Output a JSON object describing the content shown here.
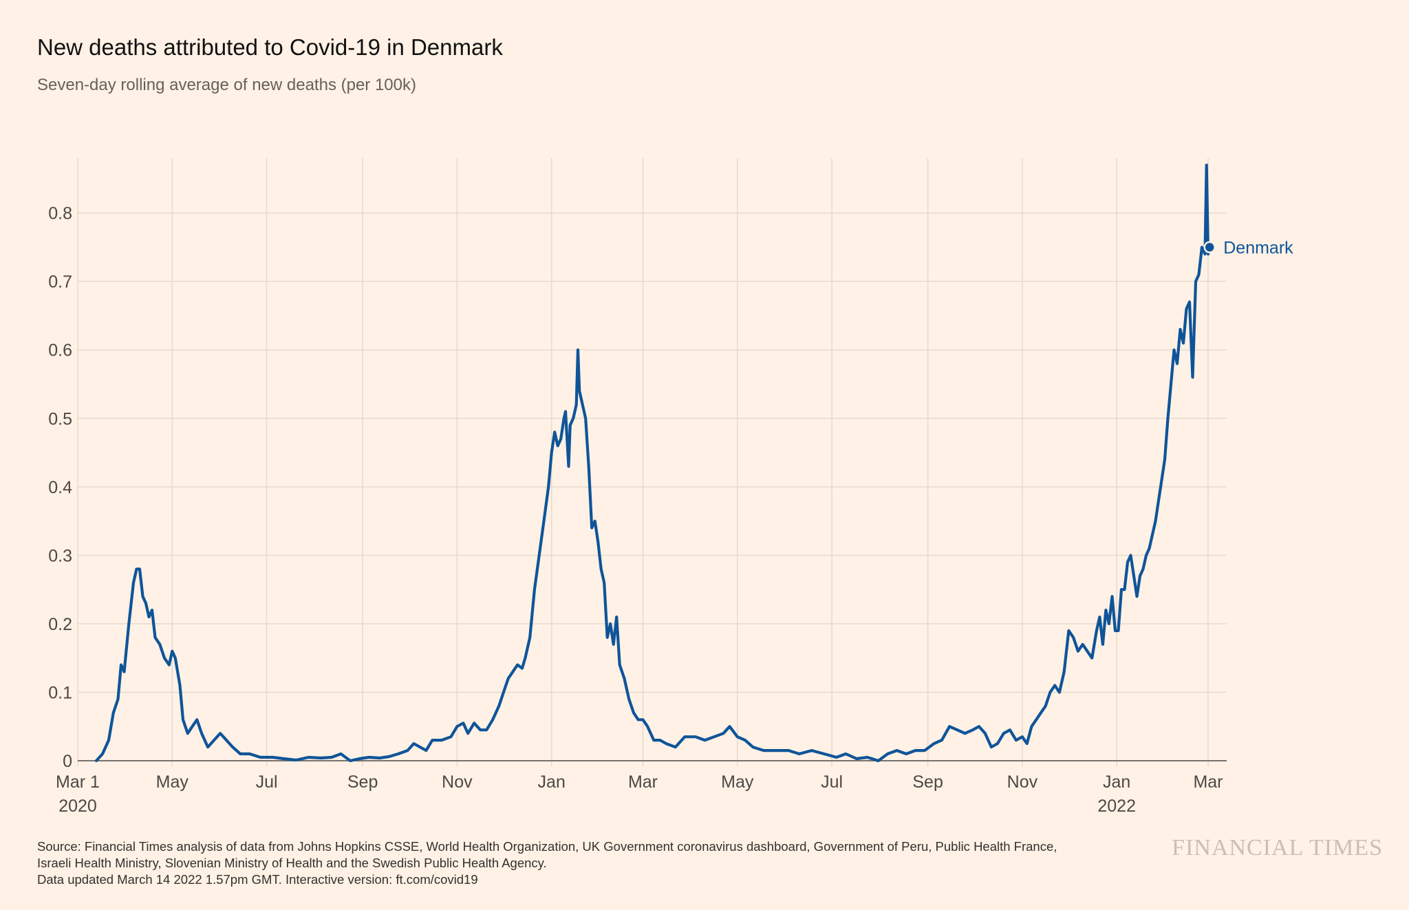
{
  "header": {
    "title": "New deaths attributed to Covid-19 in Denmark",
    "subtitle": "Seven-day rolling average of new deaths (per 100k)"
  },
  "footer": {
    "source_line1": "Source: Financial Times analysis of data from Johns Hopkins CSSE, World Health Organization, UK Government coronavirus dashboard, Government of Peru, Public Health France,",
    "source_line2": "Israeli Health Ministry, Slovenian Ministry of Health and the Swedish Public Health Agency.",
    "updated": "Data updated March 14 2022 1.57pm GMT. Interactive version: ft.com/covid19",
    "brand": "FINANCIAL TIMES"
  },
  "colors": {
    "background": "#fff1e5",
    "line": "#0f5499",
    "grid": "#e6d9ce",
    "text": "#4d4845"
  },
  "chart_data": {
    "type": "line",
    "x_axis": {
      "start": "2020-03-01",
      "end": "2022-03-13",
      "ticks": [
        {
          "date": "2020-03-01",
          "label": "Mar 1",
          "sublabel": "2020"
        },
        {
          "date": "2020-05-01",
          "label": "May",
          "sublabel": ""
        },
        {
          "date": "2020-07-01",
          "label": "Jul",
          "sublabel": ""
        },
        {
          "date": "2020-09-01",
          "label": "Sep",
          "sublabel": ""
        },
        {
          "date": "2020-11-01",
          "label": "Nov",
          "sublabel": ""
        },
        {
          "date": "2021-01-01",
          "label": "Jan",
          "sublabel": ""
        },
        {
          "date": "2021-03-01",
          "label": "Mar",
          "sublabel": ""
        },
        {
          "date": "2021-05-01",
          "label": "May",
          "sublabel": ""
        },
        {
          "date": "2021-07-01",
          "label": "Jul",
          "sublabel": ""
        },
        {
          "date": "2021-09-01",
          "label": "Sep",
          "sublabel": ""
        },
        {
          "date": "2021-11-01",
          "label": "Nov",
          "sublabel": ""
        },
        {
          "date": "2022-01-01",
          "label": "Jan",
          "sublabel": "2022"
        },
        {
          "date": "2022-03-01",
          "label": "Mar",
          "sublabel": ""
        }
      ]
    },
    "y_axis": {
      "ylim": [
        0,
        0.88
      ],
      "ticks": [
        0,
        0.1,
        0.2,
        0.3,
        0.4,
        0.5,
        0.6,
        0.7,
        0.8
      ],
      "tick_labels": [
        "0",
        "0.1",
        "0.2",
        "0.3",
        "0.4",
        "0.5",
        "0.6",
        "0.7",
        "0.8"
      ]
    },
    "grid": true,
    "series": [
      {
        "name": "Denmark",
        "color": "#0f5499",
        "points": [
          [
            "2020-03-13",
            0.0
          ],
          [
            "2020-03-17",
            0.01
          ],
          [
            "2020-03-21",
            0.03
          ],
          [
            "2020-03-24",
            0.07
          ],
          [
            "2020-03-27",
            0.09
          ],
          [
            "2020-03-29",
            0.14
          ],
          [
            "2020-03-31",
            0.13
          ],
          [
            "2020-04-03",
            0.2
          ],
          [
            "2020-04-06",
            0.26
          ],
          [
            "2020-04-08",
            0.28
          ],
          [
            "2020-04-10",
            0.28
          ],
          [
            "2020-04-12",
            0.24
          ],
          [
            "2020-04-14",
            0.23
          ],
          [
            "2020-04-16",
            0.21
          ],
          [
            "2020-04-18",
            0.22
          ],
          [
            "2020-04-20",
            0.18
          ],
          [
            "2020-04-23",
            0.17
          ],
          [
            "2020-04-26",
            0.15
          ],
          [
            "2020-04-29",
            0.14
          ],
          [
            "2020-05-01",
            0.16
          ],
          [
            "2020-05-03",
            0.15
          ],
          [
            "2020-05-06",
            0.11
          ],
          [
            "2020-05-08",
            0.06
          ],
          [
            "2020-05-11",
            0.04
          ],
          [
            "2020-05-14",
            0.05
          ],
          [
            "2020-05-17",
            0.06
          ],
          [
            "2020-05-20",
            0.04
          ],
          [
            "2020-05-24",
            0.02
          ],
          [
            "2020-05-28",
            0.03
          ],
          [
            "2020-06-01",
            0.04
          ],
          [
            "2020-06-05",
            0.03
          ],
          [
            "2020-06-09",
            0.02
          ],
          [
            "2020-06-14",
            0.01
          ],
          [
            "2020-06-20",
            0.01
          ],
          [
            "2020-06-27",
            0.005
          ],
          [
            "2020-07-05",
            0.005
          ],
          [
            "2020-07-12",
            0.003
          ],
          [
            "2020-07-20",
            0.001
          ],
          [
            "2020-07-28",
            0.005
          ],
          [
            "2020-08-05",
            0.004
          ],
          [
            "2020-08-12",
            0.005
          ],
          [
            "2020-08-18",
            0.01
          ],
          [
            "2020-08-24",
            0.0
          ],
          [
            "2020-08-30",
            0.003
          ],
          [
            "2020-09-05",
            0.005
          ],
          [
            "2020-09-12",
            0.004
          ],
          [
            "2020-09-18",
            0.006
          ],
          [
            "2020-09-24",
            0.01
          ],
          [
            "2020-09-30",
            0.015
          ],
          [
            "2020-10-04",
            0.025
          ],
          [
            "2020-10-08",
            0.02
          ],
          [
            "2020-10-12",
            0.015
          ],
          [
            "2020-10-16",
            0.03
          ],
          [
            "2020-10-22",
            0.03
          ],
          [
            "2020-10-28",
            0.035
          ],
          [
            "2020-11-01",
            0.05
          ],
          [
            "2020-11-05",
            0.055
          ],
          [
            "2020-11-08",
            0.04
          ],
          [
            "2020-11-12",
            0.055
          ],
          [
            "2020-11-16",
            0.045
          ],
          [
            "2020-11-20",
            0.045
          ],
          [
            "2020-11-24",
            0.06
          ],
          [
            "2020-11-28",
            0.08
          ],
          [
            "2020-12-01",
            0.1
          ],
          [
            "2020-12-04",
            0.12
          ],
          [
            "2020-12-07",
            0.13
          ],
          [
            "2020-12-10",
            0.14
          ],
          [
            "2020-12-13",
            0.135
          ],
          [
            "2020-12-15",
            0.15
          ],
          [
            "2020-12-18",
            0.18
          ],
          [
            "2020-12-21",
            0.25
          ],
          [
            "2020-12-24",
            0.3
          ],
          [
            "2020-12-27",
            0.35
          ],
          [
            "2020-12-30",
            0.4
          ],
          [
            "2021-01-01",
            0.45
          ],
          [
            "2021-01-03",
            0.48
          ],
          [
            "2021-01-05",
            0.46
          ],
          [
            "2021-01-07",
            0.47
          ],
          [
            "2021-01-09",
            0.5
          ],
          [
            "2021-01-10",
            0.51
          ],
          [
            "2021-01-12",
            0.43
          ],
          [
            "2021-01-13",
            0.49
          ],
          [
            "2021-01-15",
            0.5
          ],
          [
            "2021-01-17",
            0.52
          ],
          [
            "2021-01-18",
            0.6
          ],
          [
            "2021-01-19",
            0.54
          ],
          [
            "2021-01-21",
            0.52
          ],
          [
            "2021-01-23",
            0.5
          ],
          [
            "2021-01-25",
            0.43
          ],
          [
            "2021-01-27",
            0.34
          ],
          [
            "2021-01-29",
            0.35
          ],
          [
            "2021-01-31",
            0.32
          ],
          [
            "2021-02-02",
            0.28
          ],
          [
            "2021-02-04",
            0.26
          ],
          [
            "2021-02-06",
            0.18
          ],
          [
            "2021-02-08",
            0.2
          ],
          [
            "2021-02-10",
            0.17
          ],
          [
            "2021-02-12",
            0.21
          ],
          [
            "2021-02-14",
            0.14
          ],
          [
            "2021-02-17",
            0.12
          ],
          [
            "2021-02-20",
            0.09
          ],
          [
            "2021-02-23",
            0.07
          ],
          [
            "2021-02-26",
            0.06
          ],
          [
            "2021-03-01",
            0.06
          ],
          [
            "2021-03-04",
            0.05
          ],
          [
            "2021-03-08",
            0.03
          ],
          [
            "2021-03-12",
            0.03
          ],
          [
            "2021-03-16",
            0.025
          ],
          [
            "2021-03-22",
            0.02
          ],
          [
            "2021-03-28",
            0.035
          ],
          [
            "2021-04-04",
            0.035
          ],
          [
            "2021-04-10",
            0.03
          ],
          [
            "2021-04-16",
            0.035
          ],
          [
            "2021-04-22",
            0.04
          ],
          [
            "2021-04-26",
            0.05
          ],
          [
            "2021-05-01",
            0.035
          ],
          [
            "2021-05-06",
            0.03
          ],
          [
            "2021-05-11",
            0.02
          ],
          [
            "2021-05-18",
            0.015
          ],
          [
            "2021-05-26",
            0.015
          ],
          [
            "2021-06-03",
            0.015
          ],
          [
            "2021-06-10",
            0.01
          ],
          [
            "2021-06-18",
            0.015
          ],
          [
            "2021-06-26",
            0.01
          ],
          [
            "2021-07-04",
            0.005
          ],
          [
            "2021-07-10",
            0.01
          ],
          [
            "2021-07-17",
            0.003
          ],
          [
            "2021-07-24",
            0.005
          ],
          [
            "2021-07-31",
            0.0
          ],
          [
            "2021-08-06",
            0.01
          ],
          [
            "2021-08-12",
            0.015
          ],
          [
            "2021-08-18",
            0.01
          ],
          [
            "2021-08-24",
            0.015
          ],
          [
            "2021-08-30",
            0.015
          ],
          [
            "2021-09-05",
            0.025
          ],
          [
            "2021-09-10",
            0.03
          ],
          [
            "2021-09-15",
            0.05
          ],
          [
            "2021-09-20",
            0.045
          ],
          [
            "2021-09-25",
            0.04
          ],
          [
            "2021-09-30",
            0.045
          ],
          [
            "2021-10-04",
            0.05
          ],
          [
            "2021-10-08",
            0.04
          ],
          [
            "2021-10-12",
            0.02
          ],
          [
            "2021-10-16",
            0.025
          ],
          [
            "2021-10-20",
            0.04
          ],
          [
            "2021-10-24",
            0.045
          ],
          [
            "2021-10-28",
            0.03
          ],
          [
            "2021-11-01",
            0.035
          ],
          [
            "2021-11-04",
            0.025
          ],
          [
            "2021-11-07",
            0.05
          ],
          [
            "2021-11-10",
            0.06
          ],
          [
            "2021-11-13",
            0.07
          ],
          [
            "2021-11-16",
            0.08
          ],
          [
            "2021-11-19",
            0.1
          ],
          [
            "2021-11-22",
            0.11
          ],
          [
            "2021-11-25",
            0.1
          ],
          [
            "2021-11-28",
            0.13
          ],
          [
            "2021-12-01",
            0.19
          ],
          [
            "2021-12-04",
            0.18
          ],
          [
            "2021-12-07",
            0.16
          ],
          [
            "2021-12-10",
            0.17
          ],
          [
            "2021-12-13",
            0.16
          ],
          [
            "2021-12-16",
            0.15
          ],
          [
            "2021-12-19",
            0.19
          ],
          [
            "2021-12-21",
            0.21
          ],
          [
            "2021-12-23",
            0.17
          ],
          [
            "2021-12-25",
            0.22
          ],
          [
            "2021-12-27",
            0.2
          ],
          [
            "2021-12-29",
            0.24
          ],
          [
            "2021-12-31",
            0.19
          ],
          [
            "2022-01-02",
            0.19
          ],
          [
            "2022-01-04",
            0.25
          ],
          [
            "2022-01-06",
            0.25
          ],
          [
            "2022-01-08",
            0.29
          ],
          [
            "2022-01-10",
            0.3
          ],
          [
            "2022-01-12",
            0.27
          ],
          [
            "2022-01-14",
            0.24
          ],
          [
            "2022-01-16",
            0.27
          ],
          [
            "2022-01-18",
            0.28
          ],
          [
            "2022-01-20",
            0.3
          ],
          [
            "2022-01-22",
            0.31
          ],
          [
            "2022-01-24",
            0.33
          ],
          [
            "2022-01-26",
            0.35
          ],
          [
            "2022-01-28",
            0.38
          ],
          [
            "2022-01-30",
            0.41
          ],
          [
            "2022-02-01",
            0.44
          ],
          [
            "2022-02-03",
            0.5
          ],
          [
            "2022-02-05",
            0.55
          ],
          [
            "2022-02-07",
            0.6
          ],
          [
            "2022-02-09",
            0.58
          ],
          [
            "2022-02-11",
            0.63
          ],
          [
            "2022-02-13",
            0.61
          ],
          [
            "2022-02-15",
            0.66
          ],
          [
            "2022-02-17",
            0.67
          ],
          [
            "2022-02-19",
            0.56
          ],
          [
            "2022-02-21",
            0.7
          ],
          [
            "2022-02-23",
            0.71
          ],
          [
            "2022-02-25",
            0.75
          ],
          [
            "2022-02-27",
            0.74
          ],
          [
            "2022-02-28",
            0.87
          ],
          [
            "2022-03-01",
            0.74
          ],
          [
            "2022-03-02",
            0.75
          ]
        ]
      }
    ],
    "end_label": {
      "text": "Denmark",
      "value": 0.75
    }
  }
}
